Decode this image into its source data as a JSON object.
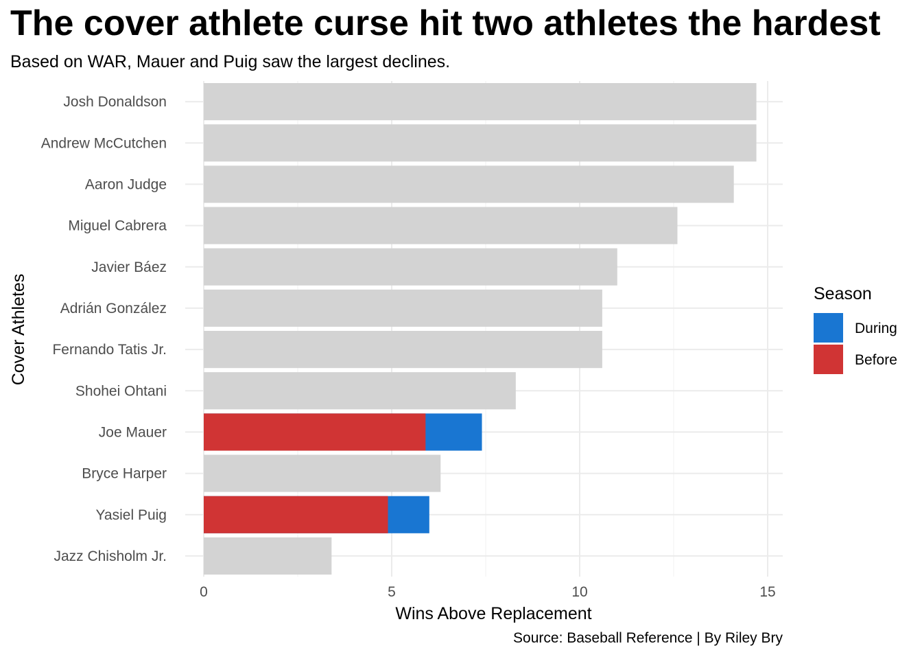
{
  "title": "The cover athlete curse hit two athletes the hardest",
  "subtitle": "Based on WAR, Mauer and Puig saw the largest declines.",
  "caption": "Source: Baseball Reference | By Riley Bry",
  "chart_data": {
    "type": "bar",
    "orientation": "horizontal",
    "xlabel": "Wins Above Replacement",
    "ylabel": "Cover Athletes",
    "xlim": [
      0,
      15.4
    ],
    "xticks": [
      0,
      5,
      10,
      15
    ],
    "grid": true,
    "legend": {
      "title": "Season",
      "placement": "right",
      "entries": [
        {
          "name": "During",
          "color": "#1976d2"
        },
        {
          "name": "Before",
          "color": "#d03434"
        }
      ]
    },
    "background_color": "#d3d3d3",
    "categories": [
      "Josh Donaldson",
      "Andrew McCutchen",
      "Aaron Judge",
      "Miguel Cabrera",
      "Javier Báez",
      "Adrián González",
      "Fernando Tatis Jr.",
      "Shohei Ohtani",
      "Joe Mauer",
      "Bryce Harper",
      "Yasiel Puig",
      "Jazz Chisholm Jr."
    ],
    "values": [
      14.7,
      14.7,
      14.1,
      12.6,
      11.0,
      10.6,
      10.6,
      8.3,
      7.4,
      6.3,
      6.0,
      3.4
    ],
    "highlights": [
      {
        "category": "Joe Mauer",
        "Before": 5.9,
        "During": 7.4
      },
      {
        "category": "Yasiel Puig",
        "Before": 4.9,
        "During": 6.0
      }
    ]
  }
}
